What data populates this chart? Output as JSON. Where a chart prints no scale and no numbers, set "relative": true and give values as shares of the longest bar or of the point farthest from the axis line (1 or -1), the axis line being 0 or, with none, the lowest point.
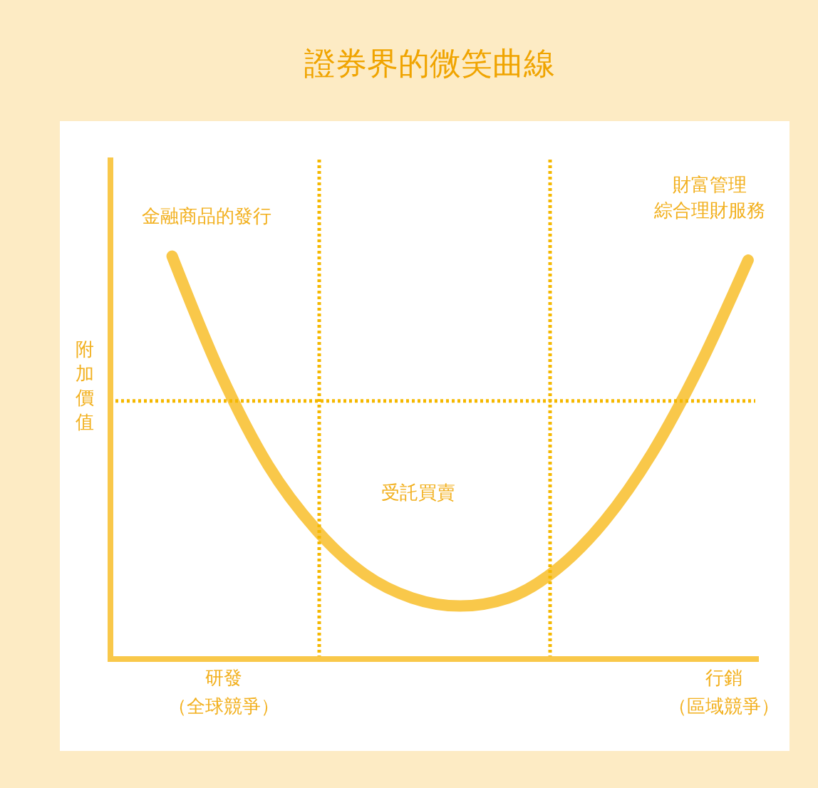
{
  "chart_data": {
    "type": "line",
    "title": "證券界的微笑曲線",
    "ylabel": "附加價值",
    "relative": true,
    "categories": [
      null,
      null,
      null,
      null,
      null,
      null,
      null,
      null,
      null,
      null,
      null,
      null,
      null
    ],
    "series": [
      {
        "color": "#f9c84a",
        "values": [
          1.0,
          0.71,
          0.48,
          0.32,
          0.21,
          0.15,
          0.13,
          0.15,
          0.22,
          0.34,
          0.51,
          0.73,
          0.99
        ]
      }
    ],
    "ref_lines": [
      {
        "axis": "y",
        "value": 0.64,
        "color": "#f5b800",
        "line_style": "dotted"
      }
    ],
    "annotations": [
      "金融商品的發行",
      "財富管理",
      "綜合理財服務",
      "受託買賣",
      "研發",
      "（全球競爭）",
      "行銷",
      "（區域競爭）"
    ],
    "tick_labels": false
  }
}
